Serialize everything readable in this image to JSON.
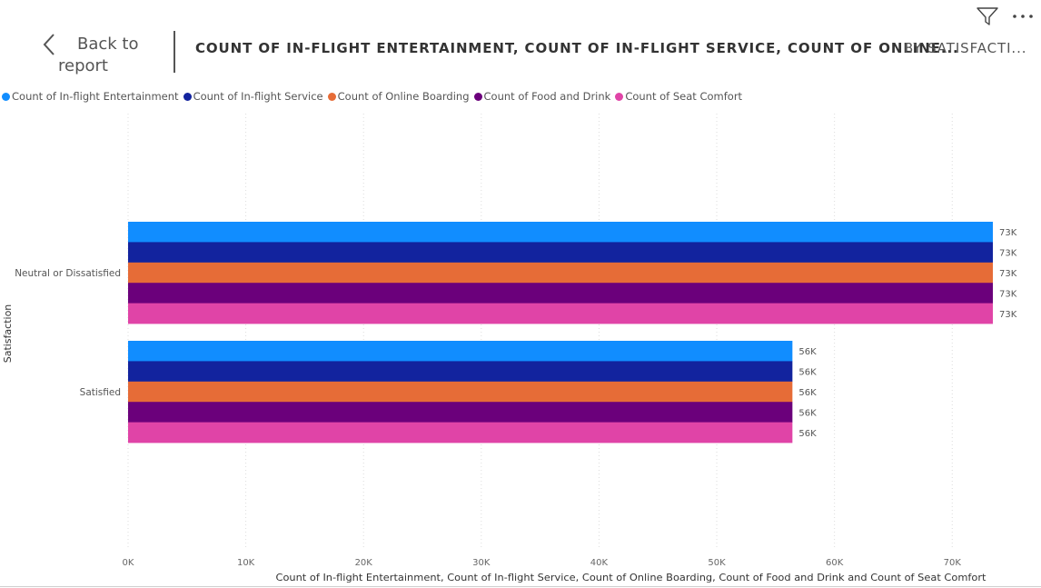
{
  "header": {
    "back_line1": "Back to",
    "back_line2": "report",
    "title": "COUNT OF IN-FLIGHT ENTERTAINMENT, COUNT OF IN-FLIGHT SERVICE, COUNT OF ONLINE...",
    "subtitle": "BY SATISFACTI..."
  },
  "icons": {
    "filter": "filter-icon",
    "more": "more-options-icon",
    "back": "chevron-left-icon"
  },
  "chart_data": {
    "type": "bar",
    "orientation": "horizontal",
    "categories": [
      "Neutral or Dissatisfied",
      "Satisfied"
    ],
    "series": [
      {
        "name": "Count of In-flight Entertainment",
        "color": "#118DFF",
        "values": [
          73452,
          56428
        ],
        "labels": [
          "73K",
          "56K"
        ]
      },
      {
        "name": "Count of In-flight Service",
        "color": "#12239E",
        "values": [
          73452,
          56428
        ],
        "labels": [
          "73K",
          "56K"
        ]
      },
      {
        "name": "Count of Online Boarding",
        "color": "#E66C37",
        "values": [
          73452,
          56428
        ],
        "labels": [
          "73K",
          "56K"
        ]
      },
      {
        "name": "Count of Food and Drink",
        "color": "#6B007B",
        "values": [
          73452,
          56428
        ],
        "labels": [
          "73K",
          "56K"
        ]
      },
      {
        "name": "Count of Seat Comfort",
        "color": "#E044A7",
        "values": [
          73452,
          56428
        ],
        "labels": [
          "73K",
          "56K"
        ]
      }
    ],
    "xlim": [
      0,
      73452
    ],
    "xticks": [
      0,
      10000,
      20000,
      30000,
      40000,
      50000,
      60000,
      70000
    ],
    "xtick_labels": [
      "0K",
      "10K",
      "20K",
      "30K",
      "40K",
      "50K",
      "60K",
      "70K"
    ],
    "xlabel": "Count of In-flight Entertainment, Count of In-flight Service, Count of Online Boarding, Count of Food and Drink and Count of Seat Comfort",
    "ylabel": "Satisfaction",
    "grid": true,
    "legend": "top-left"
  }
}
